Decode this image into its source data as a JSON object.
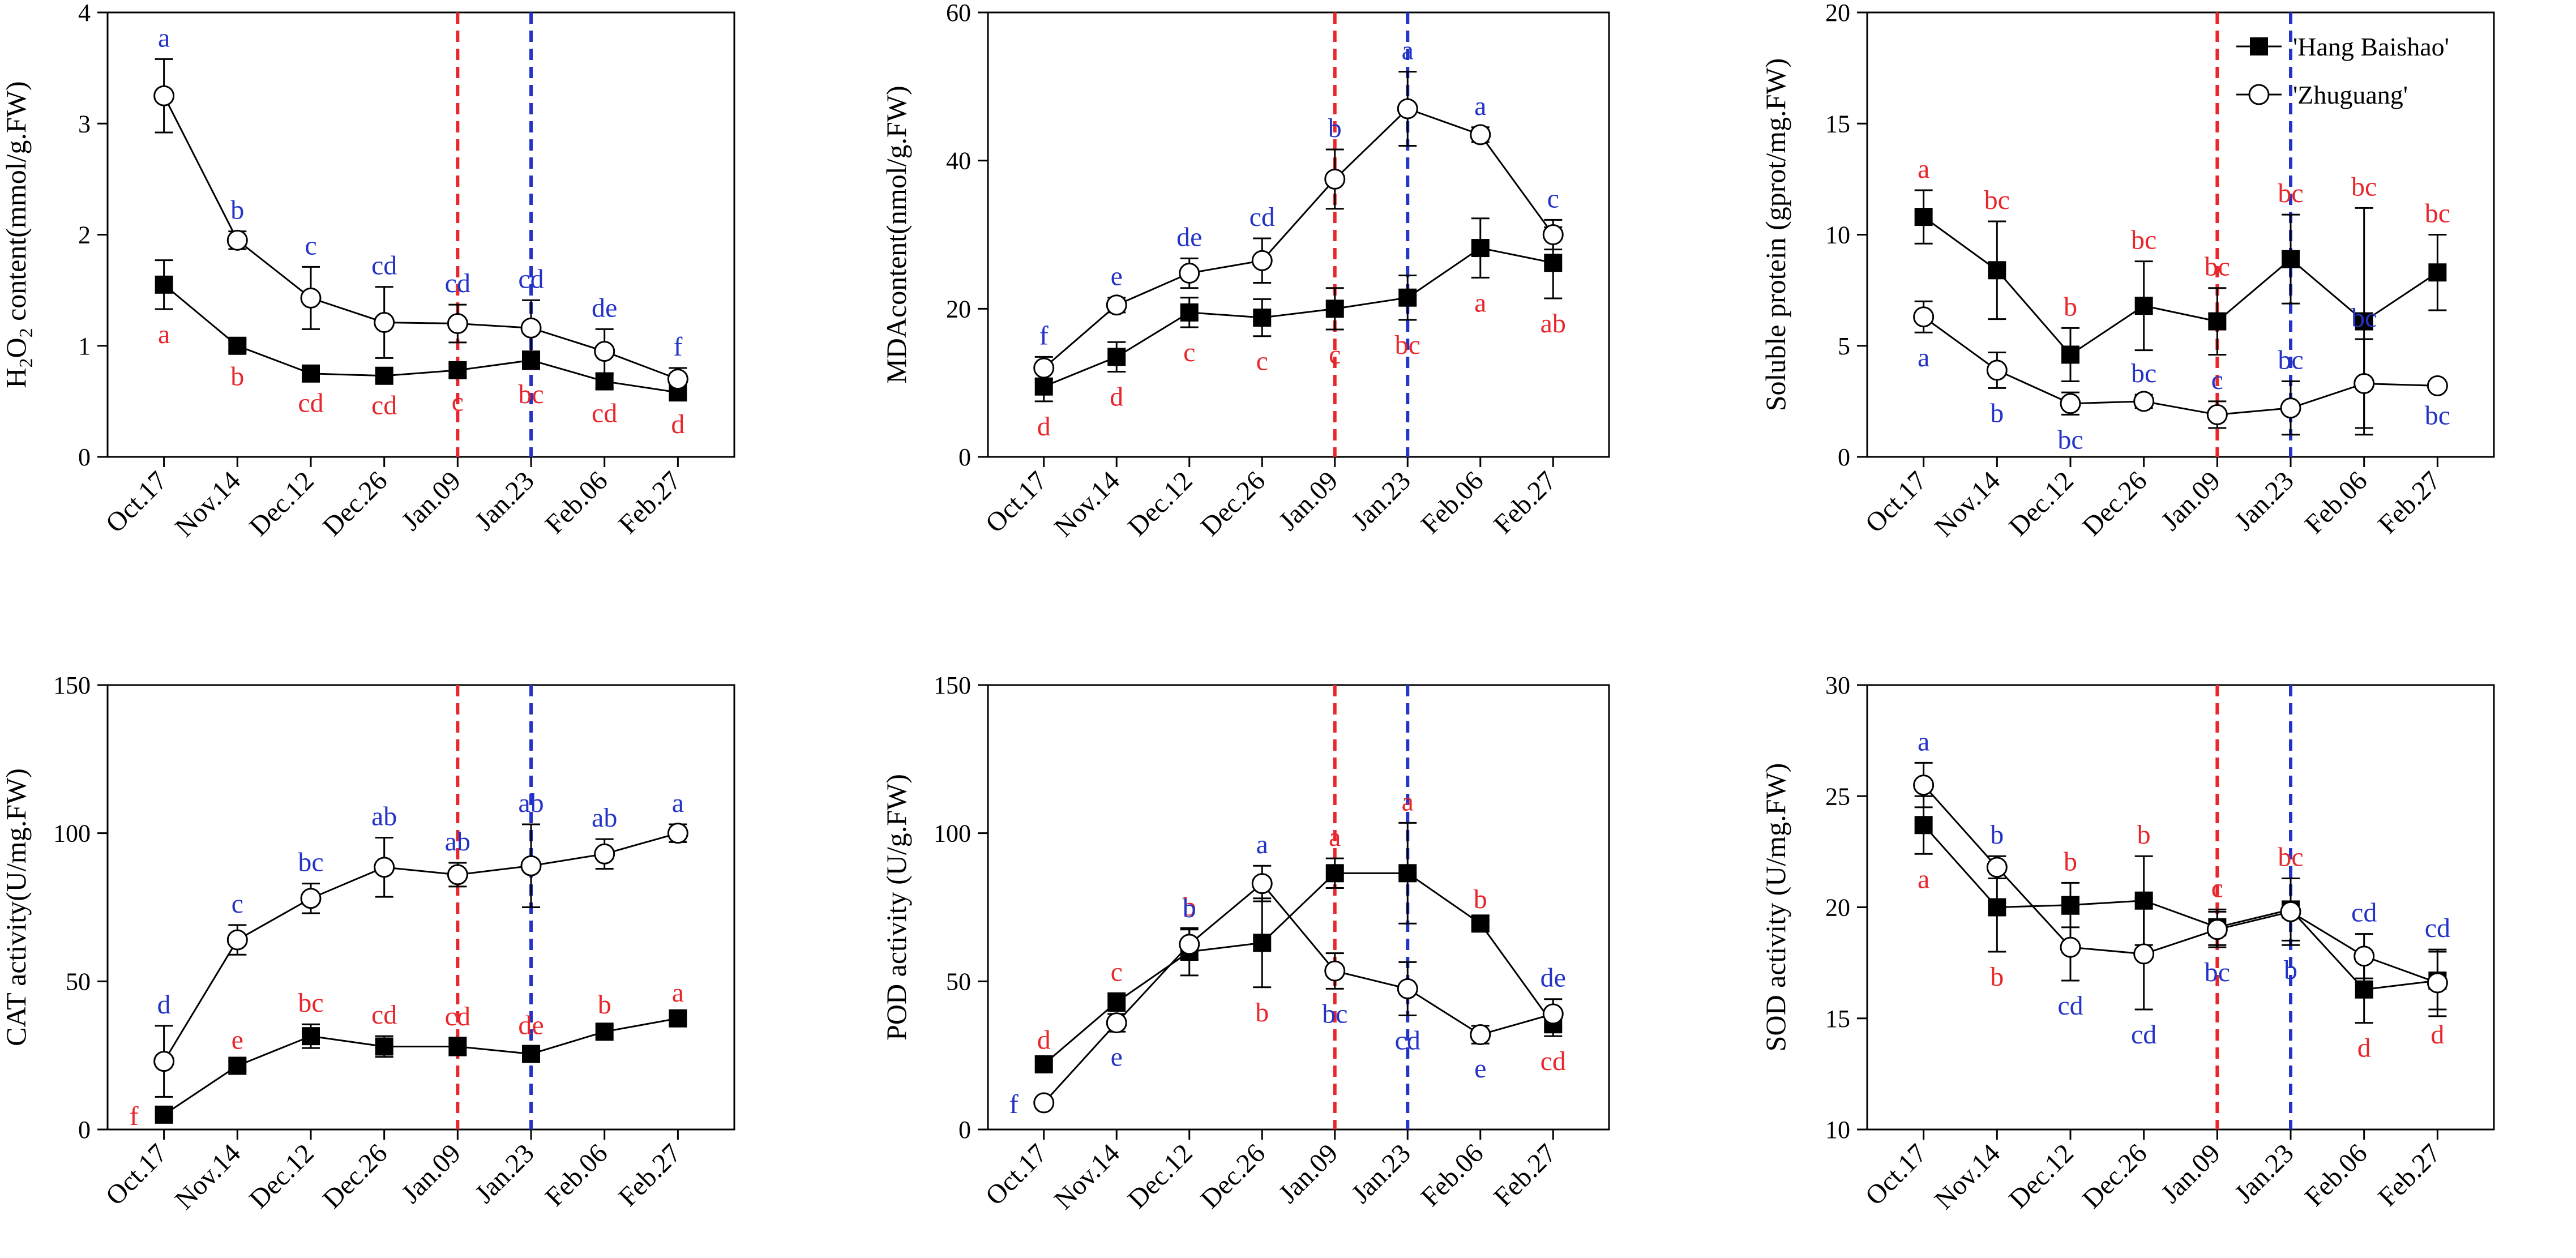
{
  "colors": {
    "hb": "#000000",
    "zg": "#000000",
    "red": "#e8262b",
    "blue": "#2433c7",
    "axis": "#000000"
  },
  "legend": {
    "hb_label": "'Hang Baishao'",
    "zg_label": "'Zhuguang'"
  },
  "chart_data": [
    {
      "type": "line",
      "id": "h2o2",
      "title": "",
      "ylabel_html": [
        "H",
        "2",
        "O",
        "2",
        " content(mmol/g.FW)"
      ],
      "ylabel": "H2O2 content(mmol/g.FW)",
      "ylim": [
        0,
        4
      ],
      "yticks": [
        0,
        1,
        2,
        3,
        4
      ],
      "categories": [
        "Oct.17",
        "Nov.14",
        "Dec.12",
        "Dec.26",
        "Jan.09",
        "Jan.23",
        "Feb.06",
        "Feb.27"
      ],
      "vlines": [
        "Jan.09",
        "Jan.23"
      ],
      "series": [
        {
          "name": "'Hang Baishao'",
          "marker": "square",
          "values": [
            1.55,
            1.0,
            0.75,
            0.73,
            0.78,
            0.87,
            0.68,
            0.58
          ],
          "errors": [
            0.22,
            0.05,
            0.04,
            0.04,
            0.06,
            0.08,
            0.06,
            0.06
          ],
          "letters": [
            "a",
            "b",
            "cd",
            "cd",
            "c",
            "bc",
            "cd",
            "d"
          ],
          "letter_pos": [
            "below",
            "below",
            "below",
            "below",
            "below",
            "below",
            "below",
            "below"
          ]
        },
        {
          "name": "'Zhuguang'",
          "marker": "circle",
          "values": [
            3.25,
            1.95,
            1.43,
            1.21,
            1.2,
            1.16,
            0.95,
            0.7
          ],
          "errors": [
            0.33,
            0.08,
            0.28,
            0.32,
            0.17,
            0.25,
            0.2,
            0.1
          ],
          "letters": [
            "a",
            "b",
            "c",
            "cd",
            "cd",
            "cd",
            "de",
            "f"
          ],
          "letter_pos": [
            "above",
            "above",
            "above",
            "above",
            "above",
            "above",
            "above",
            "above"
          ]
        }
      ]
    },
    {
      "type": "line",
      "id": "mda",
      "ylabel": "MDAcontent(nmol/g.FW)",
      "ylim": [
        0,
        60
      ],
      "yticks": [
        0,
        20,
        40,
        60
      ],
      "categories": [
        "Oct.17",
        "Nov.14",
        "Dec.12",
        "Dec.26",
        "Jan.09",
        "Jan.23",
        "Feb.06",
        "Feb.27"
      ],
      "vlines": [
        "Jan.09",
        "Jan.23"
      ],
      "series": [
        {
          "name": "'Hang Baishao'",
          "marker": "square",
          "values": [
            9.5,
            13.5,
            19.5,
            18.8,
            20.0,
            21.5,
            28.2,
            26.2
          ],
          "errors": [
            2.0,
            2.0,
            2.0,
            2.5,
            2.8,
            3.0,
            4.0,
            4.8
          ],
          "letters": [
            "d",
            "d",
            "c",
            "c",
            "c",
            "bc",
            "a",
            "ab"
          ],
          "letter_pos": [
            "below",
            "below",
            "below",
            "below",
            "below",
            "below",
            "below",
            "below"
          ]
        },
        {
          "name": "'Zhuguang'",
          "marker": "circle",
          "values": [
            12.0,
            20.5,
            24.8,
            26.5,
            37.5,
            47.0,
            43.5,
            30.0
          ],
          "errors": [
            1.5,
            1.0,
            2.0,
            3.0,
            4.0,
            5.0,
            1.0,
            2.0
          ],
          "letters": [
            "f",
            "e",
            "de",
            "cd",
            "b",
            "a",
            "a",
            "c"
          ],
          "letter_pos": [
            "above",
            "above",
            "above",
            "above",
            "above",
            "above",
            "above",
            "above"
          ]
        }
      ]
    },
    {
      "type": "line",
      "id": "protein",
      "ylabel": "Soluble protein (gprot/mg.FW)",
      "ylim": [
        0,
        20
      ],
      "yticks": [
        0,
        5,
        10,
        15,
        20
      ],
      "categories": [
        "Oct.17",
        "Nov.14",
        "Dec.12",
        "Dec.26",
        "Jan.09",
        "Jan.23",
        "Feb.06",
        "Feb.27"
      ],
      "vlines": [
        "Jan.09",
        "Jan.23"
      ],
      "legend_location": "top-right",
      "series": [
        {
          "name": "'Hang Baishao'",
          "marker": "square",
          "values": [
            10.8,
            8.4,
            4.6,
            6.8,
            6.1,
            8.9,
            6.1,
            8.3
          ],
          "errors": [
            1.2,
            2.2,
            1.2,
            2.0,
            1.5,
            2.0,
            5.1,
            1.7
          ],
          "letters": [
            "a",
            "bc",
            "b",
            "bc",
            "bc",
            "bc",
            "bc",
            "bc"
          ],
          "letter_pos": [
            "above",
            "above",
            "above",
            "above",
            "above",
            "above",
            "above",
            "above"
          ]
        },
        {
          "name": "'Zhuguang'",
          "marker": "circle",
          "values": [
            6.3,
            3.9,
            2.4,
            2.5,
            1.9,
            2.2,
            3.3,
            3.2
          ],
          "errors": [
            0.7,
            0.8,
            0.5,
            0.3,
            0.6,
            1.2,
            2.0,
            0.2
          ],
          "letters": [
            "a",
            "b",
            "bc",
            "bc",
            "c",
            "bc",
            "bc",
            "bc"
          ],
          "letter_pos": [
            "below",
            "below",
            "below",
            "above",
            "above",
            "above",
            "above",
            "below"
          ]
        }
      ]
    },
    {
      "type": "line",
      "id": "cat",
      "ylabel": "CAT activity(U/mg.FW)",
      "ylim": [
        0,
        150
      ],
      "yticks": [
        0,
        50,
        100,
        150
      ],
      "categories": [
        "Oct.17",
        "Nov.14",
        "Dec.12",
        "Dec.26",
        "Jan.09",
        "Jan.23",
        "Feb.06",
        "Feb.27"
      ],
      "vlines": [
        "Jan.09",
        "Jan.23"
      ],
      "series": [
        {
          "name": "'Hang Baishao'",
          "marker": "square",
          "values": [
            5.0,
            21.5,
            31.5,
            28.0,
            28.0,
            25.5,
            33.0,
            37.5
          ],
          "errors": [
            1.0,
            1.5,
            4.0,
            3.5,
            3.0,
            2.5,
            2.0,
            1.5
          ],
          "letters": [
            "f",
            "e",
            "bc",
            "cd",
            "cd",
            "de",
            "b",
            "a"
          ],
          "letter_pos": [
            "left",
            "above",
            "above",
            "above",
            "above",
            "above",
            "above",
            "above"
          ]
        },
        {
          "name": "'Zhuguang'",
          "marker": "circle",
          "values": [
            23.0,
            64.0,
            78.0,
            88.5,
            86.0,
            89.0,
            93.0,
            100.0
          ],
          "errors": [
            12.0,
            5.0,
            5.0,
            10.0,
            4.0,
            14.0,
            5.0,
            3.0
          ],
          "letters": [
            "d",
            "c",
            "bc",
            "ab",
            "ab",
            "ab",
            "ab",
            "a"
          ],
          "letter_pos": [
            "above",
            "above",
            "above",
            "above",
            "above",
            "above",
            "above",
            "above"
          ]
        }
      ]
    },
    {
      "type": "line",
      "id": "pod",
      "ylabel": "POD activity (U/g.FW)",
      "ylim": [
        0,
        150
      ],
      "yticks": [
        0,
        50,
        100,
        150
      ],
      "categories": [
        "Oct.17",
        "Nov.14",
        "Dec.12",
        "Dec.26",
        "Jan.09",
        "Jan.23",
        "Feb.06",
        "Feb.27"
      ],
      "vlines": [
        "Jan.09",
        "Jan.23"
      ],
      "series": [
        {
          "name": "'Hang Baishao'",
          "marker": "square",
          "values": [
            22.0,
            43.0,
            60.0,
            63.0,
            86.5,
            86.5,
            69.5,
            35.5
          ],
          "errors": [
            1.0,
            3.0,
            8.0,
            15.0,
            5.0,
            17.0,
            1.0,
            4.0
          ],
          "letters": [
            "d",
            "c",
            "b",
            "b",
            "a",
            "a",
            "b",
            "cd"
          ],
          "letter_pos": [
            "above",
            "above",
            "above",
            "below",
            "above",
            "above",
            "above",
            "below"
          ]
        },
        {
          "name": "'Zhuguang'",
          "marker": "circle",
          "values": [
            9.0,
            36.0,
            62.5,
            83.0,
            53.5,
            47.5,
            32.0,
            39.0
          ],
          "errors": [
            1.0,
            3.0,
            5.0,
            6.0,
            6.0,
            9.0,
            3.0,
            5.0
          ],
          "letters": [
            "f",
            "e",
            "b",
            "a",
            "bc",
            "cd",
            "e",
            "de"
          ],
          "letter_pos": [
            "left",
            "below",
            "above",
            "above",
            "below",
            "below",
            "below",
            "above"
          ]
        }
      ]
    },
    {
      "type": "line",
      "id": "sod",
      "ylabel": "SOD activity (U/mg.FW)",
      "ylim": [
        10,
        30
      ],
      "yticks": [
        10,
        15,
        20,
        25,
        30
      ],
      "categories": [
        "Oct.17",
        "Nov.14",
        "Dec.12",
        "Dec.26",
        "Jan.09",
        "Jan.23",
        "Feb.06",
        "Feb.27"
      ],
      "vlines": [
        "Jan.09",
        "Jan.23"
      ],
      "series": [
        {
          "name": "'Hang Baishao'",
          "marker": "square",
          "values": [
            23.7,
            20.0,
            20.1,
            20.3,
            19.1,
            19.9,
            16.3,
            16.7
          ],
          "errors": [
            1.3,
            2.0,
            1.0,
            2.0,
            0.8,
            1.4,
            1.5,
            1.3
          ],
          "letters": [
            "a",
            "b",
            "b",
            "b",
            "c",
            "bc",
            "d",
            "d"
          ],
          "letter_pos": [
            "below",
            "below",
            "above",
            "above",
            "above",
            "above",
            "below",
            "below"
          ]
        },
        {
          "name": "'Zhuguang'",
          "marker": "circle",
          "values": [
            25.5,
            21.8,
            18.2,
            17.9,
            19.0,
            19.8,
            17.8,
            16.6
          ],
          "errors": [
            1.0,
            0.5,
            1.5,
            2.5,
            0.8,
            1.5,
            1.0,
            1.5
          ],
          "letters": [
            "a",
            "b",
            "cd",
            "cd",
            "bc",
            "b",
            "cd",
            "cd"
          ],
          "letter_pos": [
            "above",
            "above",
            "below",
            "below",
            "below",
            "below",
            "above",
            "above"
          ]
        }
      ]
    }
  ]
}
